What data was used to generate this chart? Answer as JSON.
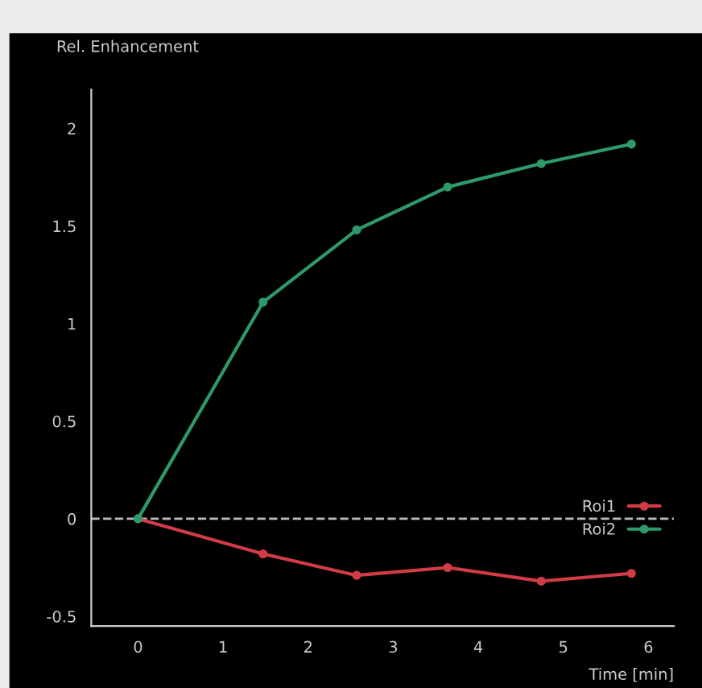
{
  "chart_data": {
    "type": "line",
    "ylabel": "Rel. Enhancement",
    "xlabel": "Time [min]",
    "x": [
      0,
      1.47,
      2.57,
      3.64,
      4.74,
      5.8
    ],
    "series": [
      {
        "name": "Roi1",
        "color": "#d23c46",
        "values": [
          0,
          -0.18,
          -0.29,
          -0.25,
          -0.32,
          -0.28
        ]
      },
      {
        "name": "Roi2",
        "color": "#2e9a6a",
        "values": [
          0,
          1.11,
          1.48,
          1.7,
          1.82,
          1.92
        ]
      }
    ],
    "xlim": [
      -0.55,
      6.3
    ],
    "ylim": [
      -0.55,
      2.2
    ],
    "xticks": [
      0,
      1,
      2,
      3,
      4,
      5,
      6
    ],
    "yticks": [
      -0.5,
      0,
      0.5,
      1,
      1.5,
      2
    ],
    "ref_lines": [
      {
        "axis": "y",
        "value": 0,
        "color": "#bbbbbb",
        "line_style": "dashed"
      }
    ],
    "marker": "circle",
    "line_style": "solid",
    "legend": "right",
    "grid": false
  }
}
